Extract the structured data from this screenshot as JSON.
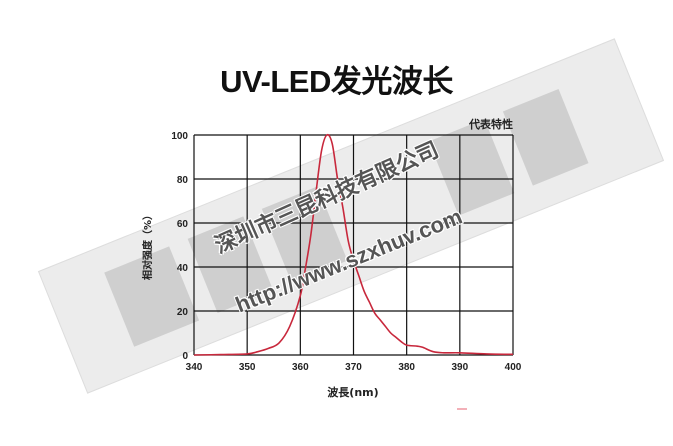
{
  "title": "UV-LED发光波长",
  "watermark": {
    "company": "深圳市三昆科技有限公司",
    "url": "http://www.szxhuv.com"
  },
  "chart_data": {
    "type": "line",
    "title": "UV-LED发光波长",
    "annotation": "代表特性",
    "xlabel": "波長(nm)",
    "ylabel": "相对强度（%）",
    "xlim": [
      340,
      400
    ],
    "ylim": [
      0,
      100
    ],
    "xticks": [
      340,
      350,
      360,
      370,
      380,
      390,
      400
    ],
    "yticks": [
      0,
      20,
      40,
      60,
      80,
      100
    ],
    "grid": true,
    "line_color": "#c8283c",
    "series": [
      {
        "x": [
          340,
          345,
          350,
          352,
          354,
          356,
          358,
          360,
          361,
          362,
          363,
          364,
          365,
          366,
          367,
          368,
          369,
          370,
          371,
          372,
          373,
          374,
          375,
          376,
          377,
          378,
          379,
          380,
          382,
          383,
          385,
          387,
          390,
          395,
          400
        ],
        "y": [
          0,
          0.2,
          0.5,
          1.5,
          3,
          5.5,
          13,
          27,
          40,
          55,
          75,
          93,
          100,
          96,
          80,
          67,
          52,
          43,
          36,
          29,
          24,
          19,
          16,
          13,
          10,
          8,
          6,
          4.5,
          4,
          3.5,
          1.5,
          1,
          1,
          0.5,
          0.3
        ]
      }
    ]
  }
}
